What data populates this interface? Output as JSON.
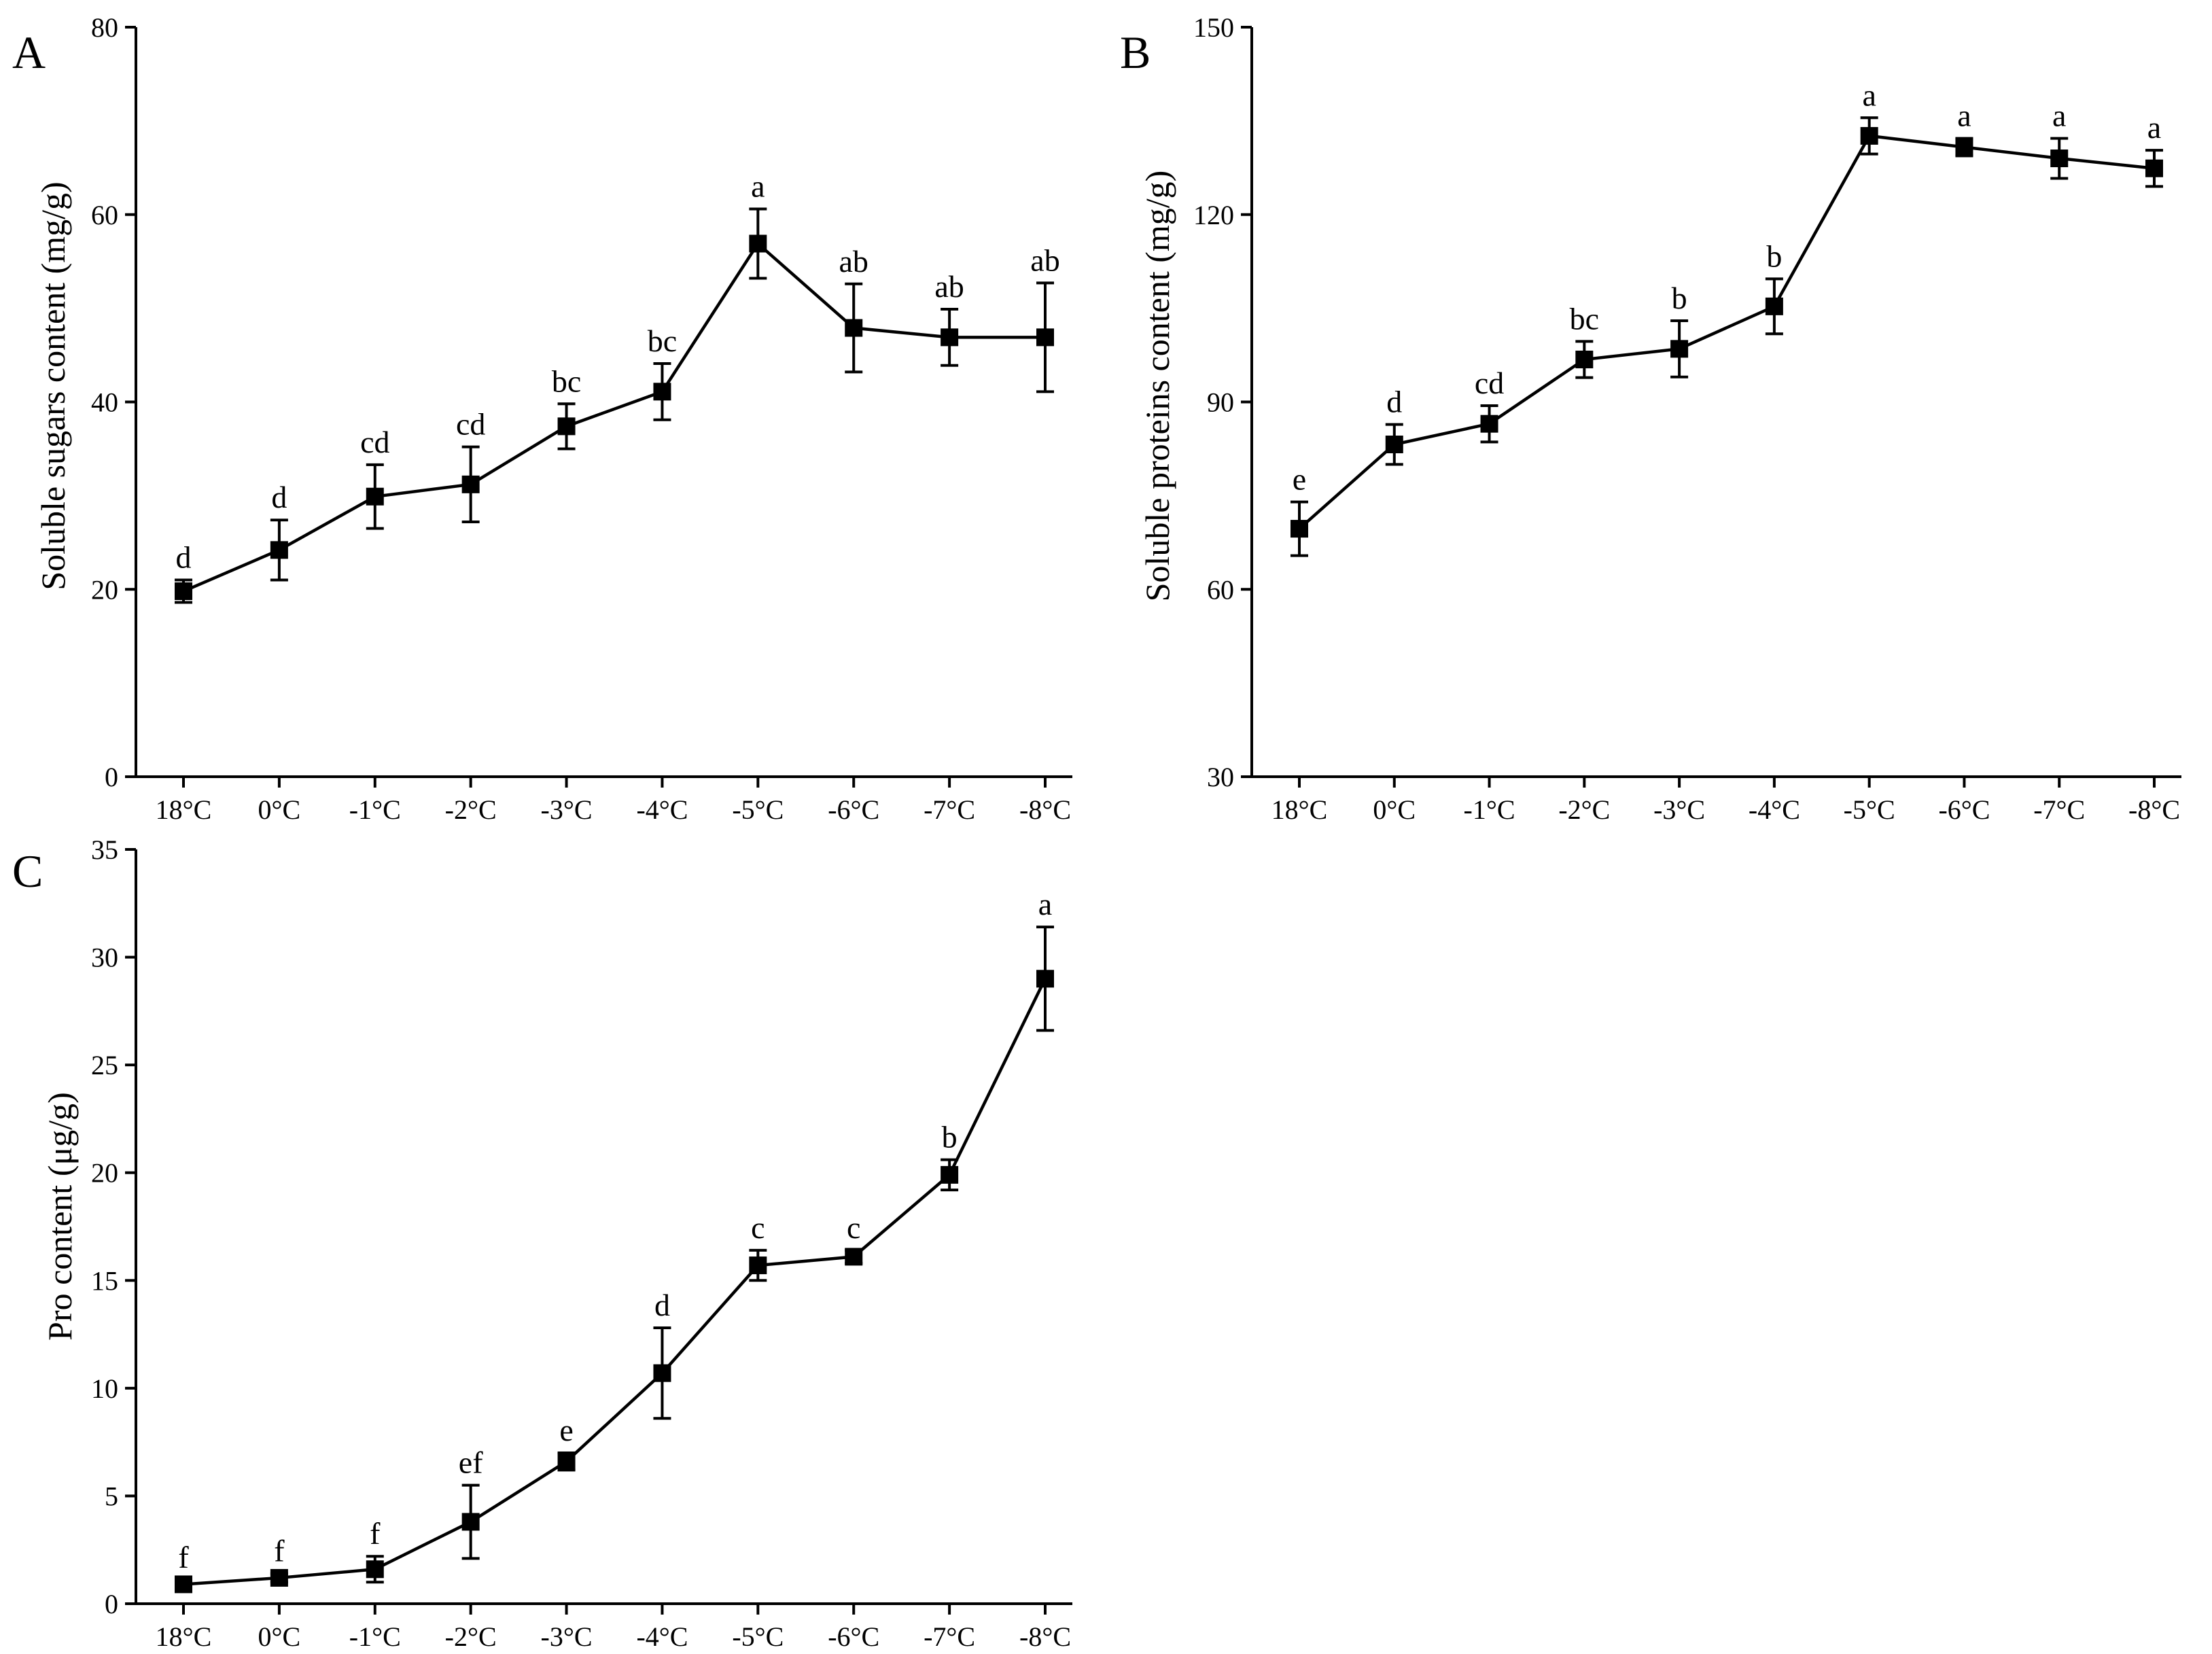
{
  "chart_data": [
    {
      "type": "line",
      "panel": "A",
      "title": "",
      "xlabel": "",
      "ylabel": "Soluble sugars content (mg/g)",
      "categories": [
        "18°C",
        "0°C",
        "-1°C",
        "-2°C",
        "-3°C",
        "-4°C",
        "-5°C",
        "-6°C",
        "-7°C",
        "-8°C"
      ],
      "yticks": [
        0,
        20,
        40,
        60,
        80
      ],
      "ylim": [
        0,
        80
      ],
      "series": [
        {
          "name": "Soluble sugars",
          "values": [
            19.8,
            24.2,
            29.9,
            31.2,
            37.4,
            41.1,
            56.9,
            47.9,
            46.9,
            46.9
          ],
          "errors": [
            1.2,
            3.2,
            3.4,
            4.0,
            2.4,
            3.0,
            3.7,
            4.7,
            3.0,
            5.8
          ],
          "labels": [
            "d",
            "d",
            "cd",
            "cd",
            "bc",
            "bc",
            "a",
            "ab",
            "ab",
            "ab"
          ]
        }
      ]
    },
    {
      "type": "line",
      "panel": "B",
      "title": "",
      "xlabel": "",
      "ylabel": "Soluble proteins content (mg/g)",
      "categories": [
        "18°C",
        "0°C",
        "-1°C",
        "-2°C",
        "-3°C",
        "-4°C",
        "-5°C",
        "-6°C",
        "-7°C",
        "-8°C"
      ],
      "yticks": [
        30,
        60,
        90,
        120,
        150
      ],
      "ylim": [
        30,
        150
      ],
      "series": [
        {
          "name": "Soluble proteins",
          "values": [
            69.7,
            83.2,
            86.5,
            96.8,
            98.5,
            105.3,
            132.6,
            130.8,
            129.0,
            127.4
          ],
          "errors": [
            4.3,
            3.2,
            2.9,
            2.9,
            4.5,
            4.4,
            2.9,
            1.4,
            3.2,
            2.9
          ],
          "labels": [
            "e",
            "d",
            "cd",
            "bc",
            "b",
            "b",
            "a",
            "a",
            "a",
            "a"
          ]
        }
      ]
    },
    {
      "type": "line",
      "panel": "C",
      "title": "",
      "xlabel": "",
      "ylabel": "Pro content (μg/g)",
      "categories": [
        "18°C",
        "0°C",
        "-1°C",
        "-2°C",
        "-3°C",
        "-4°C",
        "-5°C",
        "-6°C",
        "-7°C",
        "-8°C"
      ],
      "yticks": [
        0,
        5,
        10,
        15,
        20,
        25,
        30,
        35
      ],
      "ylim": [
        0,
        35
      ],
      "series": [
        {
          "name": "Pro",
          "values": [
            0.9,
            1.2,
            1.6,
            3.8,
            6.6,
            10.7,
            15.7,
            16.1,
            19.9,
            29.0
          ],
          "errors": [
            0.2,
            0.2,
            0.6,
            1.7,
            0.4,
            2.1,
            0.7,
            0.3,
            0.7,
            2.4
          ],
          "labels": [
            "f",
            "f",
            "f",
            "ef",
            "e",
            "d",
            "c",
            "c",
            "b",
            "a"
          ]
        }
      ]
    }
  ]
}
